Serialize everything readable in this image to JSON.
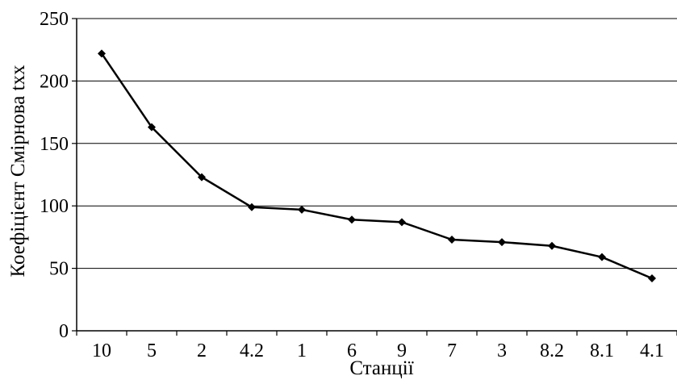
{
  "chart_data": {
    "type": "line",
    "title": "",
    "xlabel": "Станції",
    "ylabel": "Коефіцієнт Смірнова txx",
    "categories": [
      "10",
      "5",
      "2",
      "4.2",
      "1",
      "6",
      "9",
      "7",
      "3",
      "8.2",
      "8.1",
      "4.1"
    ],
    "series": [
      {
        "values": [
          222,
          163,
          123,
          99,
          97,
          89,
          87,
          73,
          71,
          68,
          59,
          42
        ]
      }
    ],
    "ylim": [
      0,
      250
    ],
    "yticks": [
      "0",
      "50",
      "100",
      "150",
      "200",
      "250"
    ],
    "grid": "horizontal",
    "legend": "none",
    "marker": "diamond",
    "colors": {
      "line": "#000000",
      "grid": "#000000",
      "axis": "#000000"
    }
  }
}
